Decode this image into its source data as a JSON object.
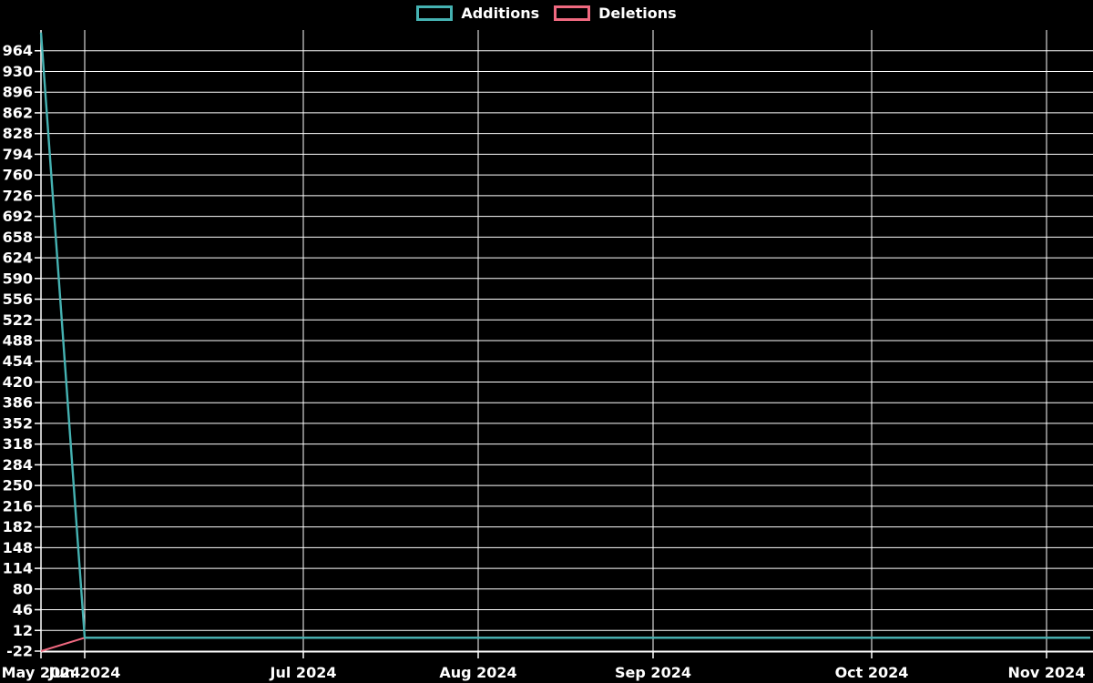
{
  "legend": {
    "items": [
      {
        "label": "Additions",
        "color": "#45b2b2"
      },
      {
        "label": "Deletions",
        "color": "#f06980"
      }
    ]
  },
  "chart_data": {
    "type": "line",
    "title": "",
    "xlabel": "",
    "ylabel": "",
    "x_unit": "week",
    "n_points": 25,
    "series": [
      {
        "name": "Additions",
        "color": "#45b2b2",
        "values": [
          994,
          0,
          0,
          0,
          0,
          0,
          0,
          0,
          0,
          0,
          0,
          0,
          0,
          0,
          0,
          0,
          0,
          0,
          0,
          0,
          0,
          0,
          0,
          0,
          0
        ]
      },
      {
        "name": "Deletions",
        "color": "#f06980",
        "values": [
          -22,
          0,
          0,
          0,
          0,
          0,
          0,
          0,
          0,
          0,
          0,
          0,
          0,
          0,
          0,
          0,
          0,
          0,
          0,
          0,
          0,
          0,
          0,
          0,
          0
        ]
      }
    ],
    "ylim": [
      -22,
      998
    ],
    "y_ticks": [
      -22,
      12,
      46,
      80,
      114,
      148,
      182,
      216,
      250,
      284,
      318,
      352,
      386,
      420,
      454,
      488,
      522,
      556,
      590,
      624,
      658,
      692,
      726,
      760,
      794,
      828,
      862,
      896,
      930,
      964
    ],
    "x_ticks": [
      {
        "index": 0,
        "label": "May 2024"
      },
      {
        "index": 1,
        "label": "Jun 2024"
      },
      {
        "index": 6,
        "label": "Jul 2024"
      },
      {
        "index": 10,
        "label": "Aug 2024"
      },
      {
        "index": 14,
        "label": "Sep 2024"
      },
      {
        "index": 19,
        "label": "Oct 2024"
      },
      {
        "index": 23,
        "label": "Nov 2024"
      }
    ],
    "grid": true,
    "grid_color": "#ffffff",
    "background": "#000000",
    "axis_text_color": "#ffffff",
    "legend_position": "top-center"
  }
}
